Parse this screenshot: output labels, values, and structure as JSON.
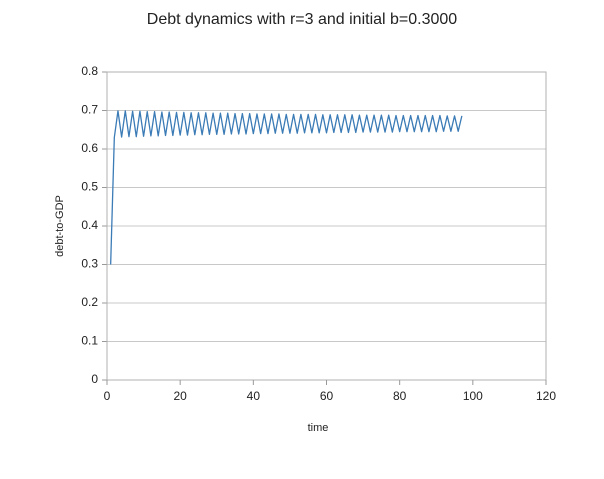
{
  "chart_data": {
    "type": "line",
    "title": "Debt dynamics with r=3 and initial b=0.3000",
    "xlabel": "time",
    "ylabel": "debt-to-GDP",
    "x": [
      1,
      2,
      3,
      4,
      5,
      6,
      7,
      8,
      9,
      10,
      11,
      12,
      13,
      14,
      15,
      16,
      17,
      18,
      19,
      20,
      21,
      22,
      23,
      24,
      25,
      26,
      27,
      28,
      29,
      30,
      31,
      32,
      33,
      34,
      35,
      36,
      37,
      38,
      39,
      40,
      41,
      42,
      43,
      44,
      45,
      46,
      47,
      48,
      49,
      50,
      51,
      52,
      53,
      54,
      55,
      56,
      57,
      58,
      59,
      60,
      61,
      62,
      63,
      64,
      65,
      66,
      67,
      68,
      69,
      70,
      71,
      72,
      73,
      74,
      75,
      76,
      77,
      78,
      79,
      80,
      81,
      82,
      83,
      84,
      85,
      86,
      87,
      88,
      89,
      90,
      91,
      92,
      93,
      94,
      95,
      96,
      97
    ],
    "series": [
      {
        "name": "debt-to-GDP",
        "color": "#3b7bb6",
        "values": [
          0.3,
          0.63,
          0.699,
          0.631,
          0.699,
          0.632,
          0.698,
          0.632,
          0.698,
          0.633,
          0.697,
          0.634,
          0.697,
          0.634,
          0.696,
          0.635,
          0.696,
          0.635,
          0.695,
          0.636,
          0.695,
          0.636,
          0.694,
          0.637,
          0.694,
          0.637,
          0.694,
          0.638,
          0.693,
          0.638,
          0.693,
          0.638,
          0.693,
          0.639,
          0.692,
          0.639,
          0.692,
          0.639,
          0.692,
          0.64,
          0.691,
          0.64,
          0.691,
          0.64,
          0.691,
          0.641,
          0.691,
          0.641,
          0.69,
          0.641,
          0.69,
          0.641,
          0.69,
          0.642,
          0.69,
          0.642,
          0.69,
          0.642,
          0.689,
          0.642,
          0.689,
          0.643,
          0.689,
          0.643,
          0.689,
          0.643,
          0.689,
          0.643,
          0.688,
          0.644,
          0.688,
          0.644,
          0.688,
          0.644,
          0.688,
          0.644,
          0.688,
          0.644,
          0.687,
          0.645,
          0.687,
          0.645,
          0.687,
          0.645,
          0.687,
          0.645,
          0.687,
          0.645,
          0.687,
          0.645,
          0.687,
          0.646,
          0.686,
          0.646,
          0.686,
          0.646,
          0.686
        ]
      }
    ],
    "xlim": [
      0,
      120
    ],
    "xticks": [
      0,
      20,
      40,
      60,
      80,
      100,
      120
    ],
    "ylim": [
      0,
      0.8
    ],
    "yticks": [
      0,
      0.1,
      0.2,
      0.3,
      0.4,
      0.5,
      0.6,
      0.7,
      0.8
    ],
    "grid": true
  }
}
